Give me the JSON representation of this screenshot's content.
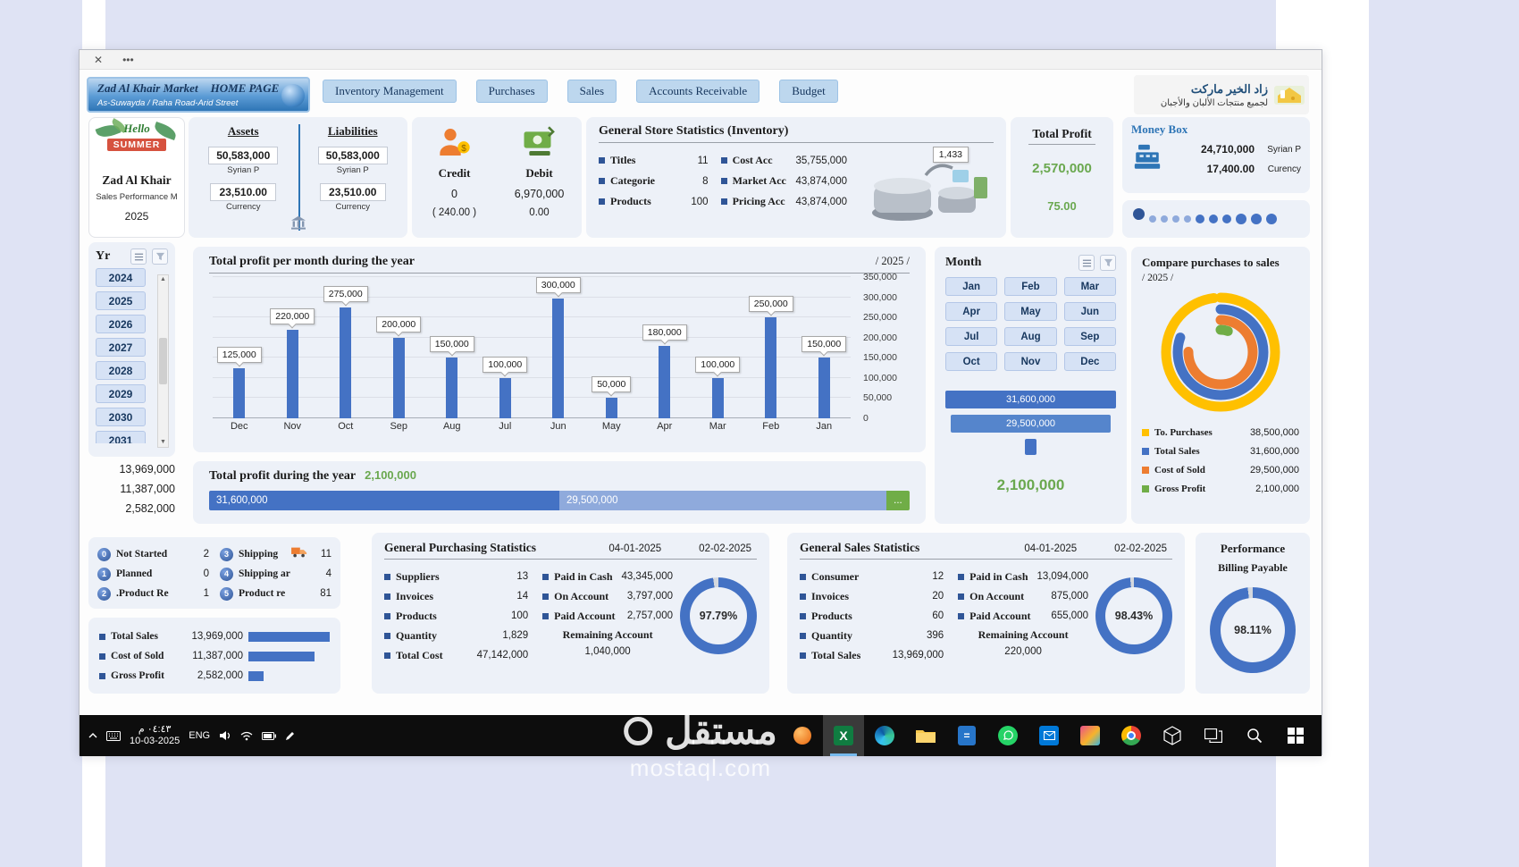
{
  "window": {
    "close": "✕",
    "menu": "•••"
  },
  "header": {
    "brand_name": "Zad Al Khair Market",
    "brand_home": "HOME PAGE",
    "brand_address": "As-Suwayda / Raha Road-Arid Street",
    "nav": [
      "Inventory Management",
      "Purchases",
      "Sales",
      "Accounts Receivable",
      "Budget"
    ],
    "logo_title": "زاد الخير ماركت",
    "logo_subtitle": "لجميع منتجات الألبان والأجبان"
  },
  "profile": {
    "hello": "Hello",
    "summer": "SUMMER",
    "store": "Zad Al Khair",
    "caption": "Sales Performance M",
    "year": "2025"
  },
  "balance": {
    "assets_label": "Assets",
    "liabilities_label": "Liabilities",
    "assets": [
      {
        "value": "50,583,000",
        "unit": "Syrian P"
      },
      {
        "value": "23,510.00",
        "unit": "Currency"
      }
    ],
    "liabilities": [
      {
        "value": "50,583,000",
        "unit": "Syrian P"
      },
      {
        "value": "23,510.00",
        "unit": "Currency"
      }
    ]
  },
  "cashflow": {
    "credit_label": "Credit",
    "credit_value": "0",
    "credit_note": "( 240.00 )",
    "debit_label": "Debit",
    "debit_value": "6,970,000",
    "debit_note": "0.00"
  },
  "inventory": {
    "title": "General Store Statistics (Inventory)",
    "stats_left": [
      {
        "label": "Titles",
        "value": "11"
      },
      {
        "label": "Categorie",
        "value": "8"
      },
      {
        "label": "Products",
        "value": "100"
      }
    ],
    "stats_right": [
      {
        "label": "Cost Acc",
        "value": "35,755,000"
      },
      {
        "label": "Market Acc",
        "value": "43,874,000"
      },
      {
        "label": "Pricing Acc",
        "value": "43,874,000"
      }
    ],
    "callout": "1,433"
  },
  "total_profit": {
    "title": "Total Profit",
    "value": "2,570,000",
    "percent": "75.00"
  },
  "money_box": {
    "title": "Money Box",
    "rows": [
      {
        "value": "24,710,000",
        "unit": "Syrian P"
      },
      {
        "value": "17,400.00",
        "unit": "Curency"
      }
    ]
  },
  "year_slicer": {
    "title": "Yr",
    "items": [
      "2024",
      "2025",
      "2026",
      "2027",
      "2028",
      "2029",
      "2030",
      "2031"
    ],
    "totals": [
      "13,969,000",
      "11,387,000",
      "2,582,000"
    ]
  },
  "chart_data": {
    "type": "bar",
    "title": "Total profit per month during the year",
    "period": "/ 2025 /",
    "categories": [
      "Dec",
      "Nov",
      "Oct",
      "Sep",
      "Aug",
      "Jul",
      "Jun",
      "May",
      "Apr",
      "Mar",
      "Feb",
      "Jan"
    ],
    "values": [
      125000,
      220000,
      275000,
      200000,
      150000,
      100000,
      300000,
      50000,
      180000,
      100000,
      250000,
      150000
    ],
    "labels": [
      "125,000",
      "220,000",
      "275,000",
      "200,000",
      "150,000",
      "100,000",
      "300,000",
      "50,000",
      "180,000",
      "100,000",
      "250,000",
      "150,000"
    ],
    "ylim": [
      0,
      350000
    ],
    "ytick_step": 50000,
    "yticks": [
      "0",
      "50,000",
      "100,000",
      "150,000",
      "200,000",
      "250,000",
      "300,000",
      "350,000"
    ],
    "bar_color": "#4472c4",
    "grid": true,
    "legend_position": "none"
  },
  "year_total": {
    "title": "Total profit during the year",
    "value": "2,100,000",
    "segments": [
      {
        "label": "31,600,000",
        "value": 31600000,
        "color": "#4472c4"
      },
      {
        "label": "29,500,000",
        "value": 29500000,
        "color": "#8faadc"
      },
      {
        "label": "...",
        "value": 2100000,
        "color": "#70ad47"
      }
    ]
  },
  "month_slicer": {
    "title": "Month",
    "items": [
      "Jan",
      "Feb",
      "Mar",
      "Apr",
      "May",
      "Jun",
      "Jul",
      "Aug",
      "Sep",
      "Oct",
      "Nov",
      "Dec"
    ],
    "bar_values": [
      "31,600,000",
      "29,500,000"
    ],
    "profit": "2,100,000"
  },
  "compare": {
    "title": "Compare purchases to sales",
    "period": "/ 2025 /",
    "rings": [
      {
        "label": "To. Purchases",
        "value": 38500000,
        "display": "38,500,000",
        "color": "#ffc000"
      },
      {
        "label": "Total Sales",
        "value": 31600000,
        "display": "31,600,000",
        "color": "#4472c4"
      },
      {
        "label": "Cost of Sold",
        "value": 29500000,
        "display": "29,500,000",
        "color": "#ed7d31"
      },
      {
        "label": "Gross Profit",
        "value": 2100000,
        "display": "2,100,000",
        "color": "#70ad47"
      }
    ]
  },
  "status": {
    "left": [
      {
        "num": "0",
        "label": "Not Started",
        "value": "2"
      },
      {
        "num": "1",
        "label": "Planned",
        "value": "0"
      },
      {
        "num": "2",
        "label": ".Product Re",
        "value": "1"
      }
    ],
    "right": [
      {
        "num": "3",
        "label": "Shipping",
        "value": "11"
      },
      {
        "num": "4",
        "label": "Shipping ar",
        "value": "4"
      },
      {
        "num": "5",
        "label": "Product re",
        "value": "81"
      }
    ]
  },
  "sales_bars": {
    "rows": [
      {
        "label": "Total Sales",
        "value": "13,969,000"
      },
      {
        "label": "Cost of Sold",
        "value": "11,387,000"
      },
      {
        "label": "Gross Profit",
        "value": "2,582,000"
      }
    ]
  },
  "purchasing": {
    "title": "General Purchasing Statistics",
    "date_from": "04-01-2025",
    "date_to": "02-02-2025",
    "col1": [
      {
        "label": "Suppliers",
        "value": "13"
      },
      {
        "label": "Invoices",
        "value": "14"
      },
      {
        "label": "Products",
        "value": "100"
      },
      {
        "label": "Quantity",
        "value": "1,829"
      },
      {
        "label": "Total Cost",
        "value": "47,142,000"
      }
    ],
    "col2": [
      {
        "label": "Paid in Cash",
        "value": "43,345,000"
      },
      {
        "label": "On Account",
        "value": "3,797,000"
      },
      {
        "label": "Paid Account",
        "value": "2,757,000"
      }
    ],
    "remaining_label": "Remaining Account",
    "remaining_value": "1,040,000",
    "gauge": {
      "percent": 97.79,
      "display": "97.79%"
    }
  },
  "sales_stats": {
    "title": "General Sales Statistics",
    "date_from": "04-01-2025",
    "date_to": "02-02-2025",
    "col1": [
      {
        "label": "Consumer",
        "value": "12"
      },
      {
        "label": "Invoices",
        "value": "20"
      },
      {
        "label": "Products",
        "value": "60"
      },
      {
        "label": "Quantity",
        "value": "396"
      },
      {
        "label": "Total Sales",
        "value": "13,969,000"
      }
    ],
    "col2": [
      {
        "label": "Paid in Cash",
        "value": "13,094,000"
      },
      {
        "label": "On Account",
        "value": "875,000"
      },
      {
        "label": "Paid Account",
        "value": "655,000"
      }
    ],
    "remaining_label": "Remaining Account",
    "remaining_value": "220,000",
    "gauge": {
      "percent": 98.43,
      "display": "98.43%"
    }
  },
  "performance": {
    "title": "Performance",
    "subtitle": "Billing Payable",
    "gauge": {
      "percent": 98.11,
      "display": "98.11%"
    }
  },
  "taskbar": {
    "time": "٠٤:٤٣ م",
    "date": "10-03-2025",
    "lang": "ENG"
  },
  "watermark": {
    "line1": "مستقل",
    "line2": "mostaql.com"
  }
}
